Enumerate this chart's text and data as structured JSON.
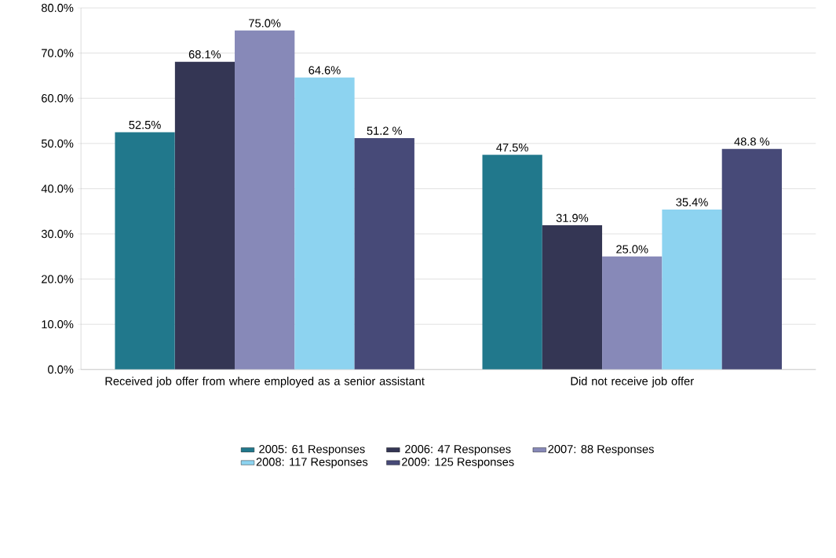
{
  "chart_data": {
    "type": "bar",
    "categories": [
      "Received job offer from where employed as a senior assistant",
      "Did not receive job offer"
    ],
    "series": [
      {
        "name": "2005: 61 Responses",
        "color": "#21788c",
        "values": [
          52.5,
          47.5
        ],
        "value_labels": [
          "52.5%",
          "47.5%"
        ]
      },
      {
        "name": "2006: 47 Responses",
        "color": "#343654",
        "values": [
          68.1,
          31.9
        ],
        "value_labels": [
          "68.1%",
          "31.9%"
        ]
      },
      {
        "name": "2007: 88 Responses",
        "color": "#8789b8",
        "values": [
          75.0,
          25.0
        ],
        "value_labels": [
          "75.0%",
          "25.0%"
        ]
      },
      {
        "name": "2008: 117 Responses",
        "color": "#8dd3f0",
        "values": [
          64.6,
          35.4
        ],
        "value_labels": [
          "64.6%",
          "35.4%"
        ]
      },
      {
        "name": "2009: 125 Responses",
        "color": "#474a78",
        "values": [
          51.2,
          48.8
        ],
        "value_labels": [
          "51.2 %",
          "48.8 %"
        ]
      }
    ],
    "ylim": [
      0,
      80
    ],
    "yticks": [
      {
        "value": 0,
        "label": "0.0%"
      },
      {
        "value": 10,
        "label": "10.0%"
      },
      {
        "value": 20,
        "label": "20.0%"
      },
      {
        "value": 30,
        "label": "30.0%"
      },
      {
        "value": 40,
        "label": "40.0%"
      },
      {
        "value": 50,
        "label": "50.0%"
      },
      {
        "value": 60,
        "label": "60.0%"
      },
      {
        "value": 70,
        "label": "70.0%"
      },
      {
        "value": 80,
        "label": "80.0%"
      }
    ],
    "grid": "y",
    "legend": "bottom"
  }
}
